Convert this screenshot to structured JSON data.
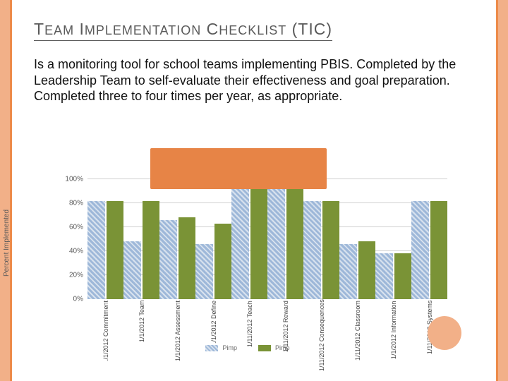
{
  "title_html": "T<span class='lc'>EAM</span> I<span class='lc'>MPLEMENTATION</span> C<span class='lc'>HECKLIST</span> (TIC)",
  "description": "Is a monitoring tool for school teams implementing PBIS. Completed by the Leadership Team to self-evaluate their effectiveness and goal preparation. Completed three to four times per year, as appropriate.",
  "chart": {
    "type": "bar",
    "y_axis_title": "Percent Implemented",
    "y_ticks": [
      "0%",
      "20%",
      "40%",
      "60%",
      "80%",
      "100%"
    ],
    "ylim": [
      0,
      100
    ],
    "categories": [
      "./1/2012 Commitment",
      "1/1/2012 Team",
      "1/1/2012 Assessment",
      "./1/2012 Define",
      "1/11/2012 Teach",
      "1/11/2012 Reward",
      "1/11/2012 Consequences",
      "1/11/2012 Classroom",
      "1/1/2012 Information",
      "1/11/2012 Systems"
    ],
    "series": [
      {
        "name": "Pimp",
        "style": "hatch",
        "color": "#9eb8d9",
        "values": [
          82,
          48,
          66,
          46,
          96,
          96,
          82,
          46,
          38,
          82
        ]
      },
      {
        "name": "Pimp",
        "style": "solid",
        "color": "#7a9336",
        "values": [
          82,
          82,
          68,
          63,
          96,
          96,
          82,
          48,
          38,
          82
        ]
      }
    ],
    "grid_color": "#d0d0d0",
    "bg": "#ffffff"
  },
  "cover_color": "#e78446",
  "accent_border": "#f2b088",
  "dot_color": "#f2b088"
}
